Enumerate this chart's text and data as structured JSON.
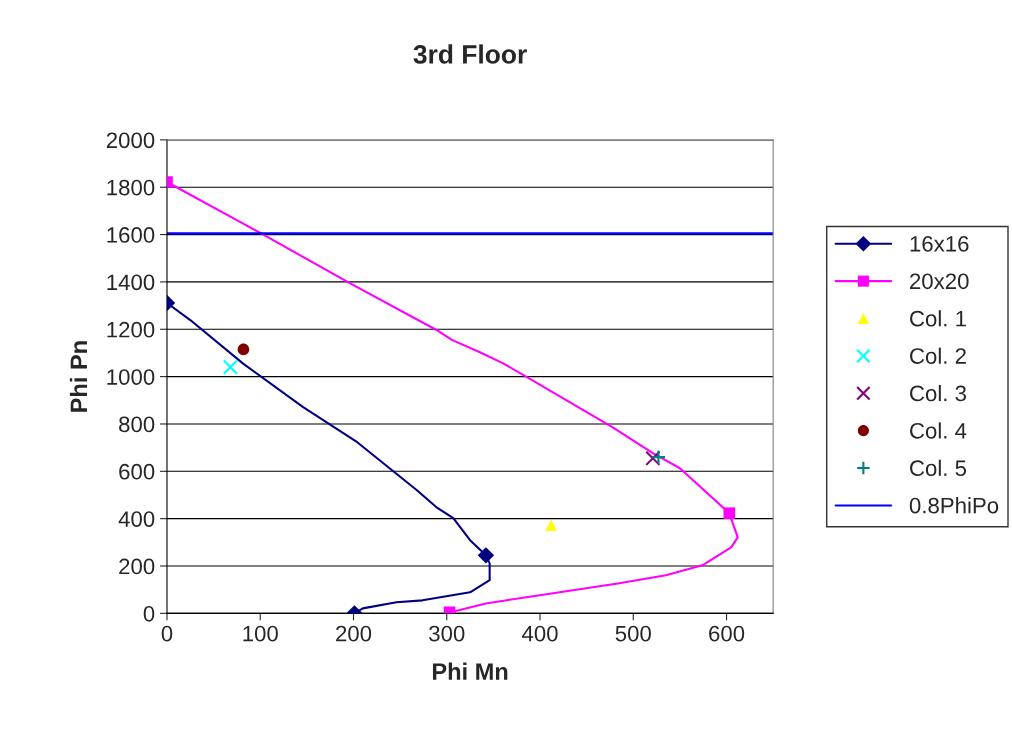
{
  "chart_data": {
    "type": "line",
    "title": "3rd Floor",
    "xlabel": "Phi Mn",
    "ylabel": "Phi Pn",
    "xlim": [
      0,
      650
    ],
    "ylim": [
      0,
      2000
    ],
    "xticks": [
      0,
      100,
      200,
      300,
      400,
      500,
      600
    ],
    "yticks": [
      0,
      200,
      400,
      600,
      800,
      1000,
      1200,
      1400,
      1600,
      1800,
      2000
    ],
    "grid": "y",
    "legend": "right",
    "line_style": "solid",
    "series": [
      {
        "name": "16x16",
        "color": "#000080",
        "x": [
          0,
          25,
          81,
          146,
          204,
          268,
          289,
          307,
          325,
          342,
          346,
          346,
          325,
          274,
          246,
          210,
          201
        ],
        "values": [
          1311,
          1239,
          1057,
          871,
          723,
          520,
          448,
          402,
          309,
          245,
          211,
          140,
          89,
          55,
          47,
          21,
          0
        ]
      },
      {
        "type": "scatter",
        "color": "#000080",
        "marker": "diamond",
        "x": [
          0,
          342,
          201
        ],
        "values": [
          1311,
          245,
          0
        ]
      },
      {
        "name": "20x20",
        "color": "#ff00ff",
        "x": [
          0,
          100,
          196,
          289,
          306,
          335,
          360,
          386,
          478,
          521,
          550,
          603,
          612,
          605,
          574,
          535,
          485,
          414,
          342,
          303
        ],
        "values": [
          1822,
          1607,
          1395,
          1197,
          1154,
          1104,
          1057,
          998,
          786,
          677,
          613,
          423,
          321,
          279,
          203,
          161,
          127,
          85,
          42,
          4
        ]
      },
      {
        "type": "scatter",
        "color": "#ff00ff",
        "marker": "square",
        "x": [
          0,
          603,
          303
        ],
        "values": [
          1822,
          423,
          4
        ]
      },
      {
        "name": "Col. 1",
        "type": "scatter",
        "color": "#ffff00",
        "marker": "triangle",
        "x": [
          412
        ],
        "values": [
          372
        ]
      },
      {
        "name": "Col. 2",
        "type": "scatter",
        "color": "#00ffff",
        "marker": "cross",
        "x": [
          68
        ],
        "values": [
          1040
        ]
      },
      {
        "name": "Col. 3",
        "type": "scatter",
        "color": "#800080",
        "marker": "cross",
        "x": [
          521
        ],
        "values": [
          655
        ]
      },
      {
        "name": "Col. 4",
        "type": "scatter",
        "color": "#800000",
        "marker": "circle",
        "x": [
          82
        ],
        "values": [
          1115
        ]
      },
      {
        "name": "Col. 5",
        "type": "scatter",
        "color": "#008080",
        "marker": "plus",
        "x": [
          527
        ],
        "values": [
          660
        ]
      },
      {
        "name": "0.8PhiPo",
        "color": "#0000ff",
        "x": [
          0,
          650
        ],
        "values": [
          1605,
          1605
        ]
      }
    ]
  }
}
